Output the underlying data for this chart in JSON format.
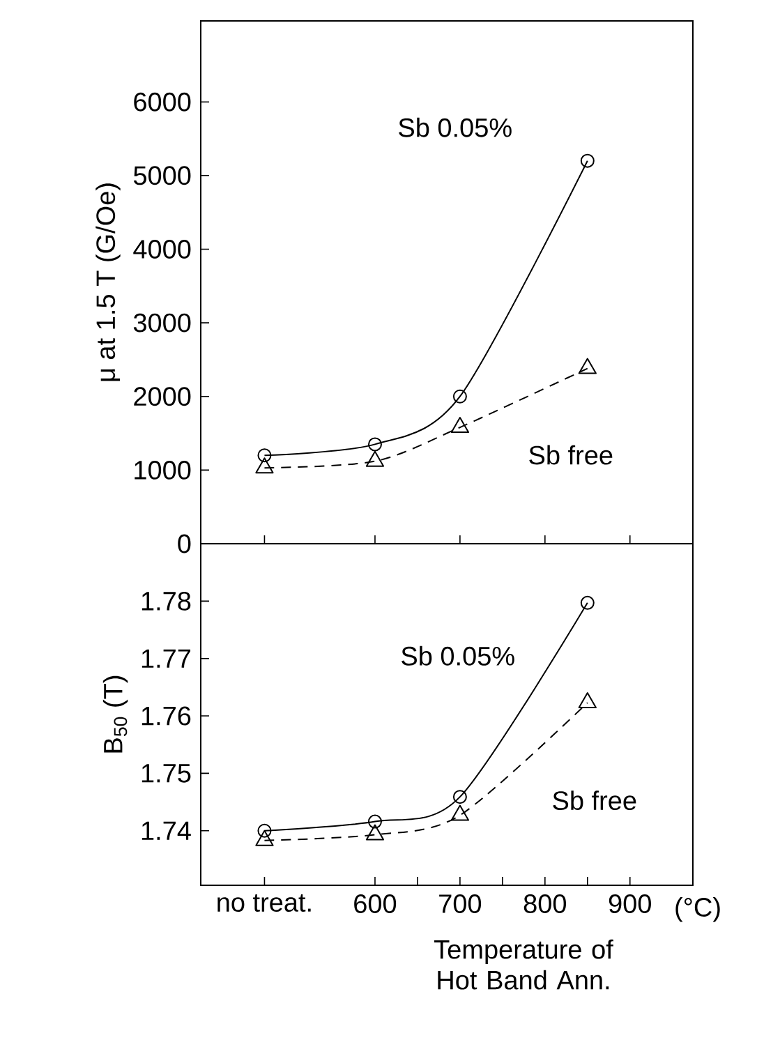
{
  "chart_data": [
    {
      "type": "line",
      "ylabel": "μ at 1.5 T (G/Oe)",
      "x": [
        470,
        600,
        700,
        850
      ],
      "xlim": [
        395,
        974
      ],
      "ylim": [
        0,
        7100
      ],
      "xticks": [
        {
          "value": 470,
          "label": null
        },
        {
          "value": 600,
          "label": null
        },
        {
          "value": 700,
          "label": null
        },
        {
          "value": 800,
          "label": null
        },
        {
          "value": 900,
          "label": null
        }
      ],
      "yticks": [
        0,
        1000,
        2000,
        3000,
        4000,
        5000,
        6000
      ],
      "tick_labels": "y",
      "grid": false,
      "legend": false,
      "series": [
        {
          "name": "Sb 0.05%",
          "color": "#000000",
          "marker": "circle",
          "line_style": "solid",
          "values": [
            1200,
            1350,
            2000,
            5200
          ]
        },
        {
          "name": "Sb free",
          "color": "#000000",
          "marker": "triangle",
          "line_style": "dashed",
          "values": [
            1030,
            1120,
            1580,
            2380
          ]
        }
      ]
    },
    {
      "type": "line",
      "ylabel": "B$_{50}$ (T)",
      "xlabel": "Temperature of Hot Band Ann.",
      "x": [
        470,
        600,
        700,
        850
      ],
      "xlim": [
        395,
        974
      ],
      "ylim": [
        1.7305,
        1.79
      ],
      "xticks": [
        {
          "value": 470,
          "label": "no treat."
        },
        600,
        {
          "value": 650,
          "label": null
        },
        700,
        {
          "value": 750,
          "label": null
        },
        800,
        {
          "value": 850,
          "label": null
        },
        900
      ],
      "yticks": [
        1.74,
        1.75,
        1.76,
        1.77,
        1.78
      ],
      "grid": false,
      "legend": false,
      "annotations": [
        "(°C)"
      ],
      "series": [
        {
          "name": "Sb 0.05%",
          "color": "#000000",
          "marker": "circle",
          "line_style": "solid",
          "values": [
            1.74,
            1.7416,
            1.7459,
            1.7797
          ]
        },
        {
          "name": "Sb free",
          "color": "#000000",
          "marker": "triangle",
          "line_style": "dashed",
          "values": [
            1.7383,
            1.7393,
            1.7427,
            1.7623
          ]
        }
      ]
    }
  ]
}
